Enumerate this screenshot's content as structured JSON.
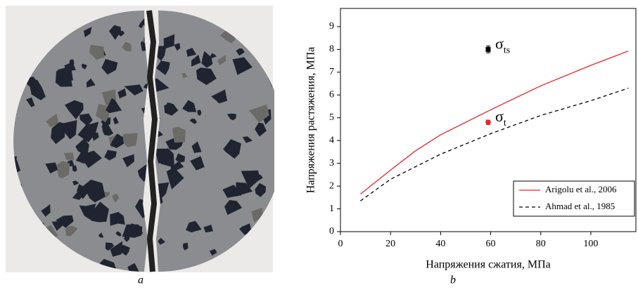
{
  "panel_labels": [
    "a",
    "b"
  ],
  "chart_data": {
    "type": "line",
    "xlabel": "Напряжения сжатия, МПа",
    "ylabel": "Напряжения растяжения, МПа",
    "xlim": [
      0,
      118
    ],
    "ylim": [
      0,
      9.8
    ],
    "xticks": [
      0,
      20,
      40,
      60,
      80,
      100
    ],
    "yticks": [
      0,
      1,
      2,
      3,
      4,
      5,
      6,
      7,
      8,
      9
    ],
    "legend": "lower right",
    "series": [
      {
        "name": "Arigolu et al., 2006",
        "color": "#e8262a",
        "dash": false,
        "x": [
          8,
          20,
          30,
          40,
          60,
          80,
          100,
          115
        ],
        "values": [
          1.65,
          2.7,
          3.55,
          4.25,
          5.35,
          6.4,
          7.3,
          7.93
        ]
      },
      {
        "name": "Ahmad et al., 1985",
        "color": "#000000",
        "dash": true,
        "x": [
          8,
          20,
          40,
          60,
          80,
          100,
          115
        ],
        "values": [
          1.35,
          2.3,
          3.4,
          4.3,
          5.1,
          5.75,
          6.3
        ]
      }
    ],
    "points": [
      {
        "symbol": "σ",
        "subscript": "ts",
        "x": 59,
        "y": 8.0,
        "error": 0.15,
        "color": "#000000",
        "marker": "square"
      },
      {
        "symbol": "σ",
        "subscript": "t",
        "x": 59,
        "y": 4.8,
        "error": 0.1,
        "color": "#e8262a",
        "marker": "circle"
      }
    ]
  }
}
